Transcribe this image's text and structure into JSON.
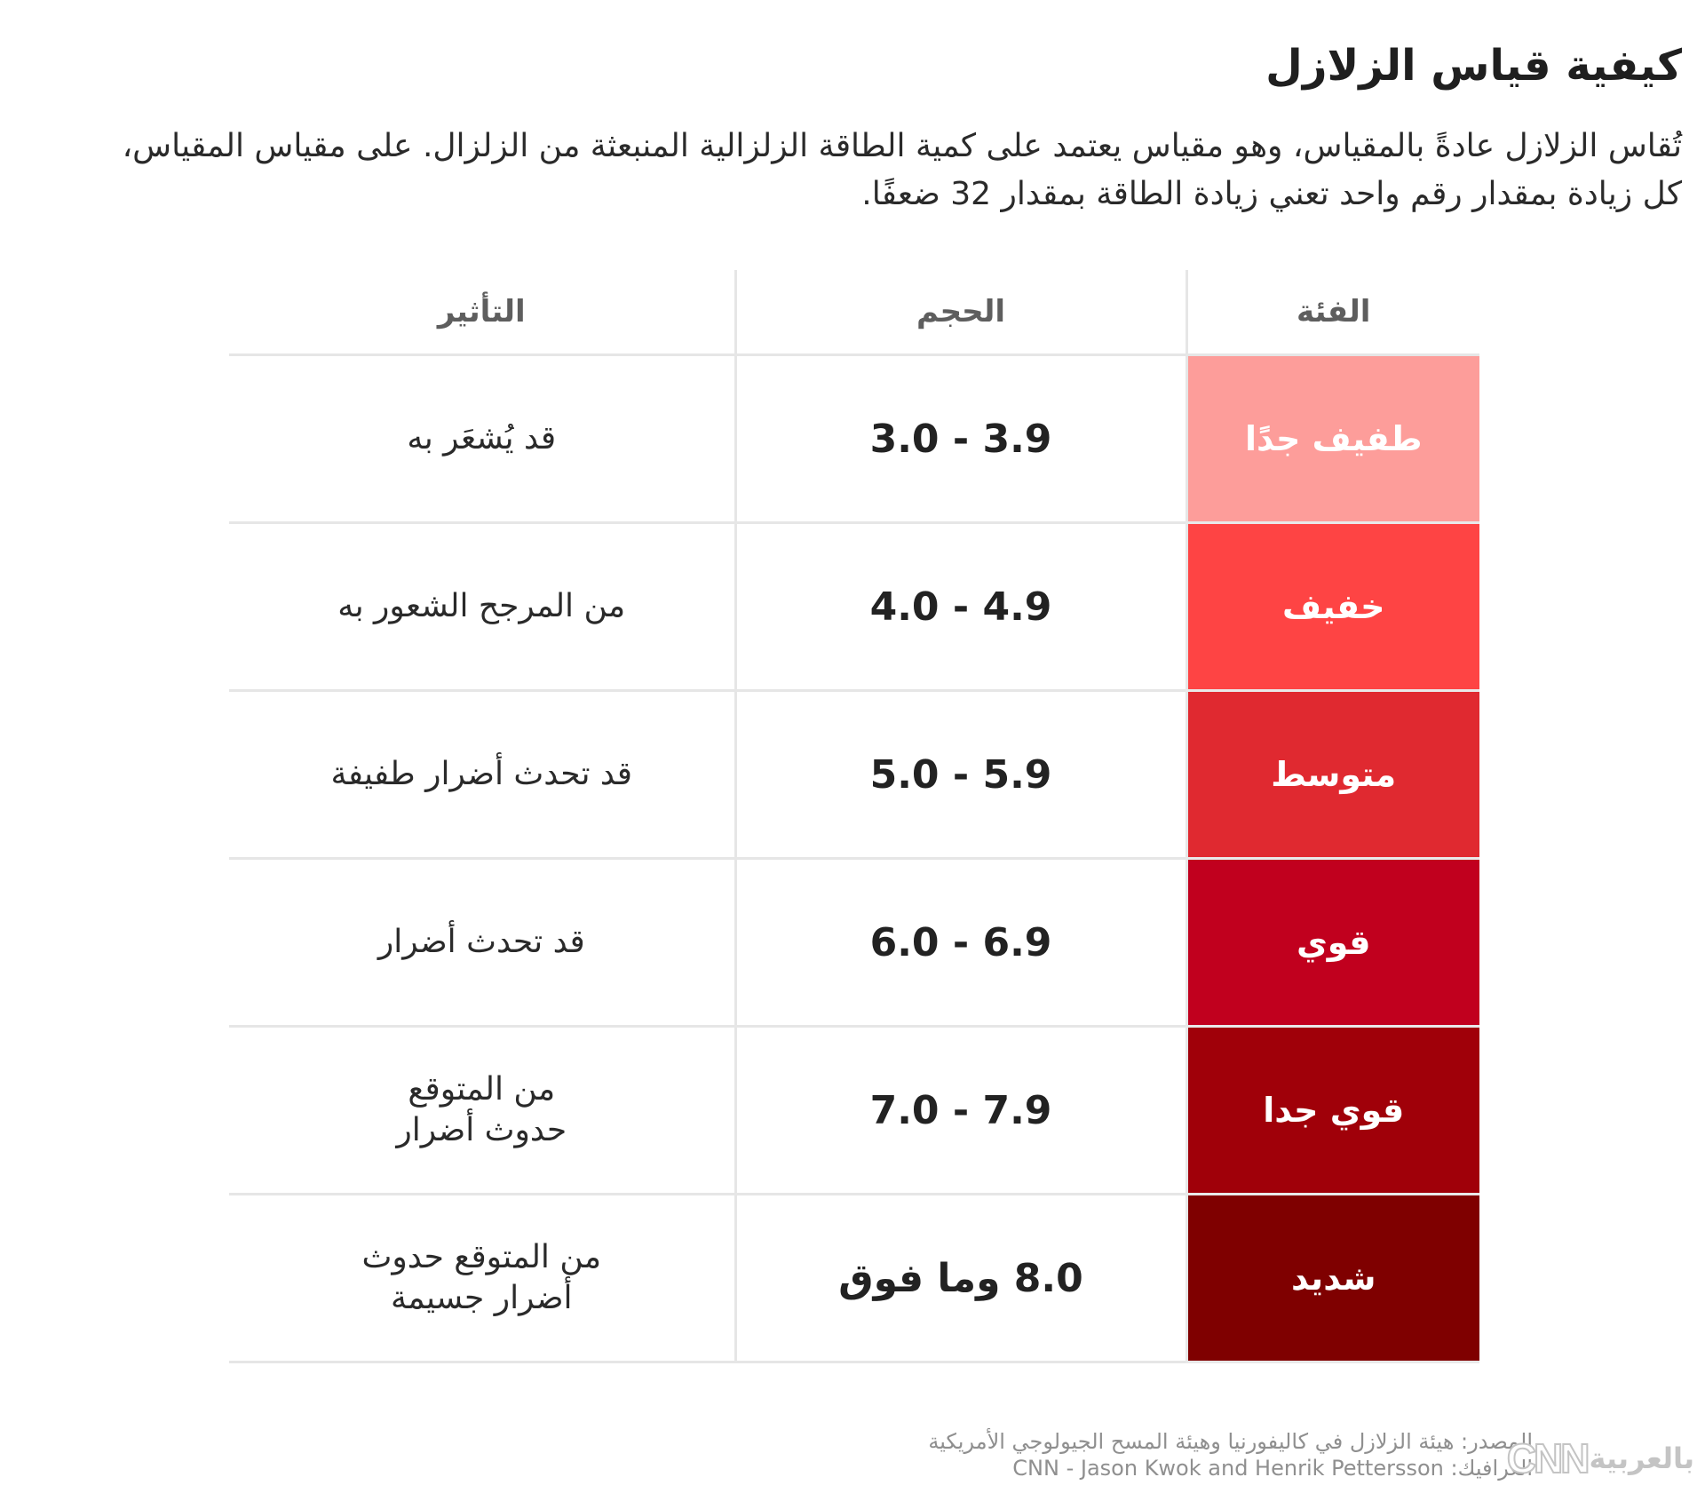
{
  "title": "كيفية قياس الزلازل",
  "subtitle": "تُقاس الزلازل عادةً بالمقياس، وهو مقياس يعتمد على كمية الطاقة الزلزالية المنبعثة من الزلزال. على مقياس المقياس، كل زيادة بمقدار رقم واحد تعني زيادة الطاقة بمقدار 32 ضعفًا.",
  "table": {
    "headers": {
      "category": "الفئة",
      "magnitude": "الحجم",
      "impact": "التأثير"
    },
    "rows": [
      {
        "category": "طفيف جدًا",
        "magnitude": "3.9 - 3.0",
        "impact": "قد يُشعَر به",
        "color": "#fd9d9a"
      },
      {
        "category": "خفيف",
        "magnitude": "4.9 - 4.0",
        "impact": "من المرجح الشعور به",
        "color": "#fe4444"
      },
      {
        "category": "متوسط",
        "magnitude": "5.9 - 5.0",
        "impact": "قد تحدث أضرار طفيفة",
        "color": "#e02930"
      },
      {
        "category": "قوي",
        "magnitude": "6.9 - 6.0",
        "impact": "قد تحدث أضرار",
        "color": "#c1001e"
      },
      {
        "category": "قوي جدا",
        "magnitude": "7.9 - 7.0",
        "impact": "من المتوقع\nحدوث أضرار",
        "color": "#a00009"
      },
      {
        "category": "شديد",
        "magnitude": "8.0 وما فوق",
        "impact": "من المتوقع حدوث\nأضرار جسيمة",
        "color": "#7f0000"
      }
    ]
  },
  "footer": {
    "source": "المصدر: هيئة الزلازل في كاليفورنيا وهيئة المسح الجيولوجي الأمريكية",
    "graphics": "الغرافيك: CNN - Jason Kwok and Henrik Pettersson"
  },
  "logo": {
    "latin": "CNN",
    "arabic": "بالعربية"
  }
}
